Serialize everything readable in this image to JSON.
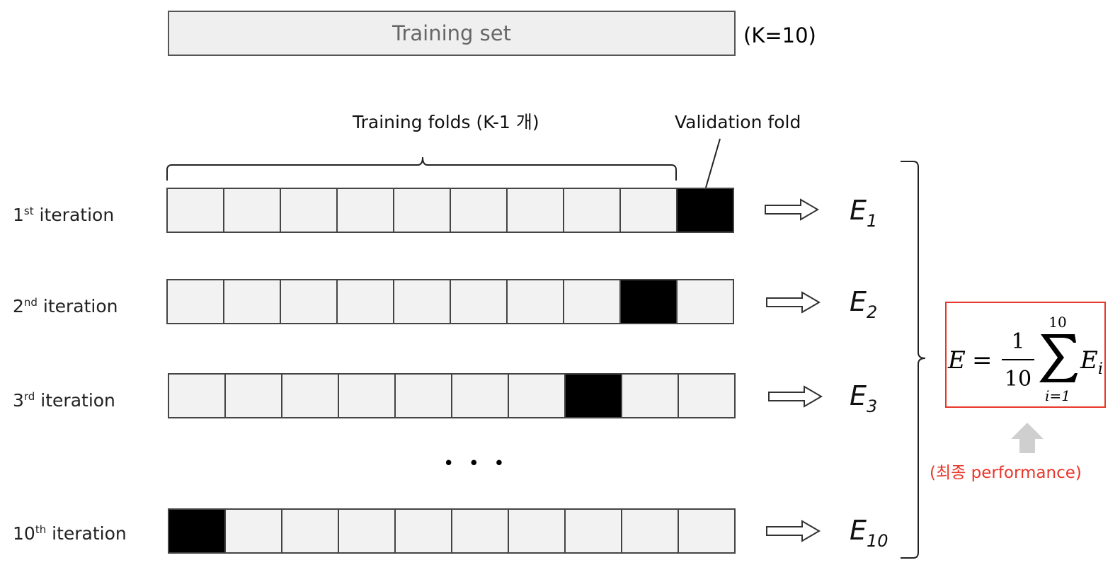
{
  "header": {
    "training_set_label": "Training set",
    "k_label": "(K=10)"
  },
  "labels": {
    "training_folds": "Training folds (K-1 개)",
    "validation_fold": "Validation fold",
    "ellipsis": "• • •"
  },
  "iterations": [
    {
      "ordinal": "1",
      "suffix": "st",
      "word": " iteration",
      "validation_fold": 10,
      "e_base": "E",
      "e_sub": "1"
    },
    {
      "ordinal": "2",
      "suffix": "nd",
      "word": " iteration",
      "validation_fold": 9,
      "e_base": "E",
      "e_sub": "2"
    },
    {
      "ordinal": "3",
      "suffix": "rd",
      "word": " iteration",
      "validation_fold": 8,
      "e_base": "E",
      "e_sub": "3"
    },
    {
      "ordinal": "10",
      "suffix": "th",
      "word": " iteration",
      "validation_fold": 1,
      "e_base": "E",
      "e_sub": "10"
    }
  ],
  "formula": {
    "lhs": "E",
    "equals": "=",
    "numerator": "1",
    "denominator": "10",
    "upper_limit": "10",
    "lower_limit": "i=1",
    "term_base": "E",
    "term_sub": "i"
  },
  "final_label": "(최종 performance)",
  "colors": {
    "accent": "#e8372a",
    "validation": "#000000",
    "fold": "#f2f2f2",
    "arrow_gray": "#cfcfcf"
  }
}
